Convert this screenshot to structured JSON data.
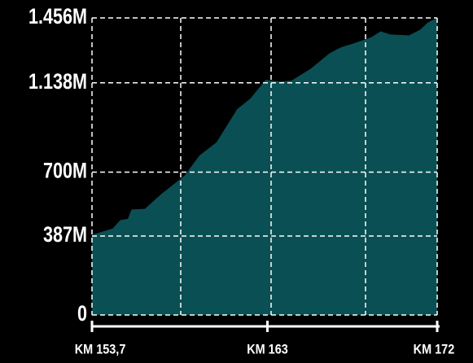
{
  "chart_data": {
    "type": "area",
    "color": "#0a4f53",
    "x": [
      153.7,
      154.8,
      155.2,
      155.6,
      155.8,
      156.5,
      157.4,
      158.6,
      159.4,
      160.3,
      161.4,
      162.1,
      162.9,
      163.7,
      164.3,
      165.3,
      166.3,
      166.9,
      167.6,
      168.5,
      169.0,
      169.5,
      170.5,
      171.1,
      171.5,
      172.0
    ],
    "values": [
      393,
      424,
      465,
      471,
      517,
      520,
      595,
      682,
      782,
      846,
      1009,
      1061,
      1152,
      1144,
      1150,
      1207,
      1283,
      1312,
      1332,
      1361,
      1390,
      1375,
      1370,
      1398,
      1433,
      1456
    ],
    "xlim": [
      153.7,
      172
    ],
    "xticks": [
      {
        "value": 153.7,
        "label": "KM 153,7"
      },
      {
        "value": 163,
        "label": "KM 163"
      },
      {
        "value": 172,
        "label": "KM 172"
      }
    ],
    "ylim": [
      0,
      1456
    ],
    "yticks": [
      0,
      {
        "value": 387,
        "label": "387M"
      },
      {
        "value": 700,
        "label": "700M"
      },
      {
        "value": 1138,
        "label": "1.138M"
      },
      {
        "value": 1456,
        "label": "1.456M"
      }
    ],
    "grid": true
  }
}
